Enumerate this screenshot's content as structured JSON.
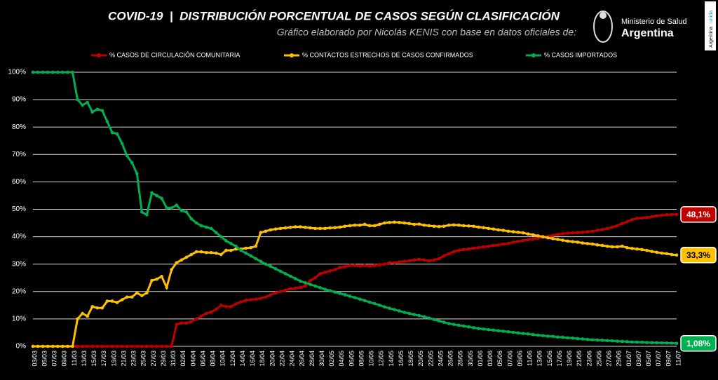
{
  "chart_data": {
    "type": "line",
    "title": "COVID-19  |  DISTRIBUCIÓN PORCENTUAL DE CASOS SEGÚN CLASIFICACIÓN",
    "subtitle": "Gráfico elaborado por Nicolás KENIS con base en datos oficiales de:",
    "categories": [
      "03/03",
      null,
      "05/03",
      null,
      "07/03",
      null,
      "09/03",
      null,
      "11/03",
      null,
      "13/03",
      null,
      "15/03",
      null,
      "17/03",
      null,
      "19/03",
      null,
      "21/03",
      null,
      "23/03",
      null,
      "25/03",
      null,
      "27/03",
      null,
      "29/03",
      null,
      "31/03",
      null,
      "02/04",
      null,
      "04/04",
      null,
      "06/04",
      null,
      "08/04",
      null,
      "10/04",
      null,
      "12/04",
      null,
      "14/04",
      null,
      "16/04",
      null,
      "18/04",
      null,
      "20/04",
      null,
      "22/04",
      null,
      "24/04",
      null,
      "26/04",
      null,
      "28/04",
      null,
      "30/04",
      null,
      "02/05",
      null,
      "04/05",
      null,
      "06/05",
      null,
      "08/05",
      null,
      "10/05",
      null,
      "12/05",
      null,
      "14/05",
      null,
      "16/05",
      null,
      "18/05",
      null,
      "20/05",
      null,
      "22/05",
      null,
      "24/05",
      null,
      "26/05",
      null,
      "28/05",
      null,
      "30/05",
      null,
      "01/06",
      null,
      "03/06",
      null,
      "05/06",
      null,
      "07/06",
      null,
      "09/06",
      null,
      "11/06",
      null,
      "13/06",
      null,
      "15/06",
      null,
      "17/06",
      null,
      "19/06",
      null,
      "21/06",
      null,
      "23/06",
      null,
      "25/06",
      null,
      "27/06",
      null,
      "29/06",
      null,
      "01/07",
      null,
      "03/07",
      null,
      "05/07",
      null,
      "07/07",
      null,
      "09/07",
      null,
      "11/07"
    ],
    "series": [
      {
        "name": "% CASOS DE CIRCULACIÓN COMUNITARIA",
        "color": "#c00000",
        "values": [
          0,
          0,
          0,
          0,
          0,
          0,
          0,
          0,
          0,
          0,
          0,
          0,
          0,
          0,
          0,
          0,
          0,
          0,
          0,
          0,
          0,
          0,
          0,
          0,
          0,
          0,
          0,
          0,
          0,
          8,
          8.5,
          8.5,
          9,
          10,
          11,
          12,
          12.5,
          13.5,
          15,
          14.5,
          14.5,
          15.5,
          16.2,
          16.8,
          17,
          17.2,
          17.5,
          18,
          18.8,
          19.5,
          20,
          20.5,
          21,
          21.2,
          21.5,
          22,
          24,
          25,
          26.5,
          27,
          27.5,
          28,
          28.8,
          29,
          29.5,
          29.5,
          29.3,
          29.5,
          29.3,
          29.5,
          29.8,
          30,
          30.5,
          30.5,
          30.8,
          31,
          31.2,
          31.5,
          31.7,
          31.5,
          31.2,
          31.5,
          32,
          33,
          33.8,
          34.5,
          35,
          35.3,
          35.5,
          35.8,
          36,
          36.3,
          36.5,
          36.8,
          37,
          37.3,
          37.5,
          38,
          38.3,
          38.6,
          38.9,
          39.2,
          39.5,
          39.8,
          40.1,
          40.5,
          40.8,
          41.1,
          41.3,
          41.4,
          41.5,
          41.6,
          41.8,
          42,
          42.3,
          42.6,
          43,
          43.5,
          44,
          44.8,
          45.5,
          46.2,
          46.7,
          46.8,
          47,
          47.3,
          47.6,
          47.8,
          48,
          48.1,
          48.1
        ],
        "value_labels": [
          null,
          null,
          null,
          null,
          null,
          null,
          null,
          null,
          null,
          null,
          null,
          null,
          null,
          null,
          null,
          null,
          null,
          null,
          null,
          null,
          null,
          null,
          null,
          null,
          null,
          null,
          null,
          null,
          null,
          null,
          null,
          null,
          null,
          null,
          null,
          null,
          null,
          null,
          null,
          null,
          null,
          null,
          null,
          null,
          null,
          null,
          null,
          null,
          null,
          null,
          null,
          null,
          null,
          null,
          null,
          null,
          null,
          null,
          null,
          null,
          null,
          null,
          null,
          null,
          null,
          null,
          null,
          null,
          null,
          null,
          null,
          null,
          null,
          null,
          null,
          null,
          null,
          null,
          null,
          null,
          null,
          null,
          null,
          null,
          null,
          null,
          null,
          null,
          null,
          null,
          null,
          null,
          null,
          null,
          null,
          null,
          null,
          null,
          null,
          null,
          null,
          null,
          null,
          null,
          null,
          null,
          null,
          null,
          null,
          null,
          null,
          null,
          null,
          null,
          null,
          null,
          null,
          null,
          null,
          null,
          null,
          null,
          null,
          null,
          null,
          null,
          null,
          null,
          null,
          null,
          "48,1%"
        ]
      },
      {
        "name": "% CONTACTOS ESTRECHOS DE CASOS CONFIRMADOS",
        "color": "#ffc000",
        "values": [
          0,
          0,
          0,
          0,
          0,
          0,
          0,
          0,
          0,
          10,
          12,
          11,
          14.5,
          14,
          14,
          16.5,
          16.5,
          16,
          17,
          18,
          18,
          19.5,
          18.5,
          19.5,
          24,
          24.5,
          25.5,
          21.5,
          28,
          30.5,
          31.5,
          32.5,
          33.5,
          34.5,
          34.5,
          34.2,
          34.2,
          34,
          33.5,
          35,
          35,
          35.5,
          35.5,
          35.8,
          36,
          36.5,
          41.5,
          42,
          42.5,
          42.8,
          43,
          43.2,
          43.4,
          43.6,
          43.6,
          43.4,
          43.2,
          43,
          43,
          43,
          43.2,
          43.3,
          43.5,
          43.8,
          44,
          44.2,
          44.2,
          44.5,
          44,
          44,
          44.5,
          45,
          45.2,
          45.3,
          45.2,
          45,
          44.8,
          44.5,
          44.6,
          44.2,
          44,
          43.8,
          43.7,
          43.8,
          44.2,
          44.3,
          44.2,
          44,
          43.9,
          43.8,
          43.5,
          43.3,
          43,
          42.8,
          42.5,
          42.3,
          42,
          41.8,
          41.6,
          41.4,
          41,
          40.7,
          40.3,
          40,
          39.6,
          39.3,
          39,
          38.7,
          38.4,
          38.2,
          38,
          37.7,
          37.5,
          37.3,
          37,
          36.8,
          36.5,
          36.3,
          36.3,
          36.5,
          36,
          35.7,
          35.5,
          35.3,
          35,
          34.6,
          34.3,
          34,
          33.8,
          33.5,
          33.3
        ],
        "value_labels": [
          null,
          null,
          null,
          null,
          null,
          null,
          null,
          null,
          null,
          null,
          null,
          null,
          null,
          null,
          null,
          null,
          null,
          null,
          null,
          null,
          null,
          null,
          null,
          null,
          null,
          null,
          null,
          null,
          null,
          null,
          null,
          null,
          null,
          null,
          null,
          null,
          null,
          null,
          null,
          null,
          null,
          null,
          null,
          null,
          null,
          null,
          null,
          null,
          null,
          null,
          null,
          null,
          null,
          null,
          null,
          null,
          null,
          null,
          null,
          null,
          null,
          null,
          null,
          null,
          null,
          null,
          null,
          null,
          null,
          null,
          null,
          null,
          null,
          null,
          null,
          null,
          null,
          null,
          null,
          null,
          null,
          null,
          null,
          null,
          null,
          null,
          null,
          null,
          null,
          null,
          null,
          null,
          null,
          null,
          null,
          null,
          null,
          null,
          null,
          null,
          null,
          null,
          null,
          null,
          null,
          null,
          null,
          null,
          null,
          null,
          null,
          null,
          null,
          null,
          null,
          null,
          null,
          null,
          null,
          null,
          null,
          null,
          null,
          null,
          null,
          null,
          null,
          null,
          null,
          null,
          "33,3%"
        ]
      },
      {
        "name": "% CASOS IMPORTADOS",
        "color": "#00b050",
        "values": [
          100,
          100,
          100,
          100,
          100,
          100,
          100,
          100,
          100,
          90,
          88,
          89,
          85.5,
          86.5,
          86,
          82,
          78,
          77.5,
          74,
          69.5,
          67,
          63,
          49,
          48,
          56,
          55,
          54,
          50.5,
          50.5,
          51.5,
          49.5,
          49,
          46.5,
          45,
          44,
          43.5,
          43,
          41.5,
          40,
          38.5,
          37.5,
          36.5,
          35,
          34,
          33,
          32,
          31,
          30,
          29.2,
          28.3,
          27.4,
          26.5,
          25.6,
          24.7,
          23.8,
          23.2,
          22.6,
          22,
          21.4,
          20.8,
          20.3,
          19.8,
          19.3,
          18.8,
          18.3,
          17.8,
          17.2,
          16.7,
          16.1,
          15.6,
          15,
          14.4,
          13.9,
          13.4,
          12.9,
          12.4,
          12,
          11.6,
          11.2,
          10.8,
          10.3,
          9.8,
          9.3,
          8.8,
          8.3,
          8,
          7.7,
          7.4,
          7.1,
          6.8,
          6.5,
          6.3,
          6.1,
          5.9,
          5.7,
          5.5,
          5.3,
          5.1,
          4.9,
          4.7,
          4.5,
          4.3,
          4.1,
          3.9,
          3.7,
          3.6,
          3.4,
          3.3,
          3.1,
          3,
          2.8,
          2.7,
          2.5,
          2.4,
          2.3,
          2.2,
          2.1,
          2,
          1.9,
          1.8,
          1.7,
          1.6,
          1.55,
          1.5,
          1.4,
          1.35,
          1.3,
          1.25,
          1.2,
          1.15,
          1.08
        ],
        "value_labels": [
          null,
          null,
          null,
          null,
          null,
          null,
          null,
          null,
          null,
          null,
          null,
          null,
          null,
          null,
          null,
          null,
          null,
          null,
          null,
          null,
          null,
          null,
          null,
          null,
          null,
          null,
          null,
          null,
          null,
          null,
          null,
          null,
          null,
          null,
          null,
          null,
          null,
          null,
          null,
          null,
          null,
          null,
          null,
          null,
          null,
          null,
          null,
          null,
          null,
          null,
          null,
          null,
          null,
          null,
          null,
          null,
          null,
          null,
          null,
          null,
          null,
          null,
          null,
          null,
          null,
          null,
          null,
          null,
          null,
          null,
          null,
          null,
          null,
          null,
          null,
          null,
          null,
          null,
          null,
          null,
          null,
          null,
          null,
          null,
          null,
          null,
          null,
          null,
          null,
          null,
          null,
          null,
          null,
          null,
          null,
          null,
          null,
          null,
          null,
          null,
          null,
          null,
          null,
          null,
          null,
          null,
          null,
          null,
          null,
          null,
          null,
          null,
          null,
          null,
          null,
          null,
          null,
          null,
          null,
          null,
          null,
          null,
          null,
          null,
          null,
          null,
          null,
          null,
          null,
          null,
          "1,08%"
        ]
      }
    ],
    "ylim": [
      0,
      100
    ],
    "yticks": [
      {
        "value": 0,
        "label": "0%"
      },
      {
        "value": 10,
        "label": "10%"
      },
      {
        "value": 20,
        "label": "20%"
      },
      {
        "value": 30,
        "label": "30%"
      },
      {
        "value": 40,
        "label": "40%"
      },
      {
        "value": 50,
        "label": "50%"
      },
      {
        "value": 60,
        "label": "60%"
      },
      {
        "value": 70,
        "label": "70%"
      },
      {
        "value": 80,
        "label": "80%"
      },
      {
        "value": 90,
        "label": "90%"
      },
      {
        "value": 100,
        "label": "100%"
      }
    ],
    "grid": true
  },
  "logo": {
    "line1": "Ministerio de Salud",
    "line2": "Argentina"
  },
  "badge": {
    "line1": "Argentina",
    "line2": "unida"
  }
}
